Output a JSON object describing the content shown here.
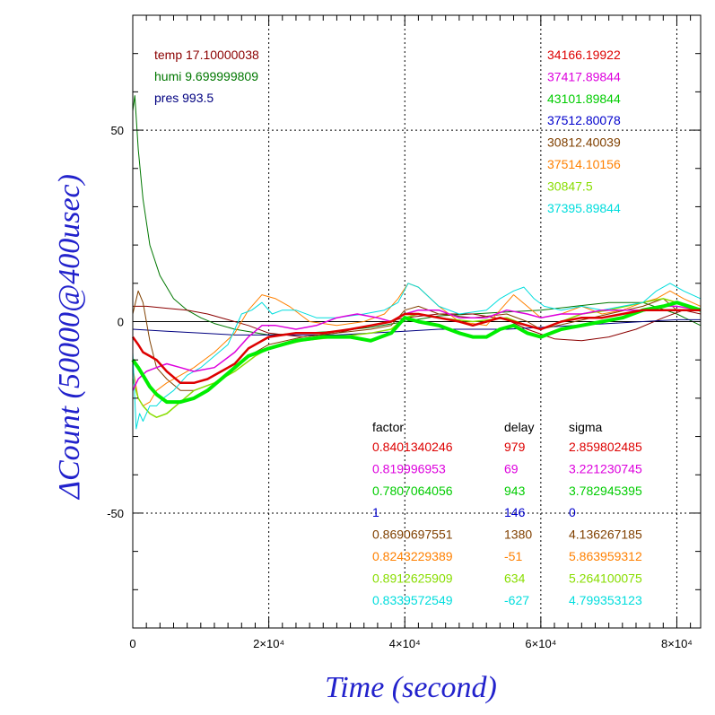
{
  "chart_data": {
    "type": "line",
    "xlabel": "Time (second)",
    "ylabel": "ΔCount (50000@400usec)",
    "xlim": [
      0,
      83500
    ],
    "ylim": [
      -80,
      80
    ],
    "grid": true,
    "x_ticks": [
      {
        "value": 0,
        "label": "0"
      },
      {
        "value": 20000,
        "label": "2×10⁴"
      },
      {
        "value": 40000,
        "label": "4×10⁴"
      },
      {
        "value": 60000,
        "label": "6×10⁴"
      },
      {
        "value": 80000,
        "label": "8×10⁴"
      }
    ],
    "y_ticks": [
      {
        "value": 50,
        "label": "50"
      },
      {
        "value": 0,
        "label": "0"
      },
      {
        "value": -50,
        "label": "-50"
      }
    ],
    "env_legend": [
      {
        "name": "temp",
        "value": "17.10000038",
        "color": "#8b0000"
      },
      {
        "name": "humi",
        "value": "9.699999809",
        "color": "#007700"
      },
      {
        "name": "pres",
        "value": "993.5",
        "color": "#000080"
      }
    ],
    "mean_values": [
      {
        "value": "34166.19922",
        "color": "#dd0000"
      },
      {
        "value": "37417.89844",
        "color": "#dd00dd"
      },
      {
        "value": "43101.89844",
        "color": "#00cc00"
      },
      {
        "value": "37512.80078",
        "color": "#0000cc"
      },
      {
        "value": "30812.40039",
        "color": "#804000"
      },
      {
        "value": "37514.10156",
        "color": "#ff8000"
      },
      {
        "value": "30847.5",
        "color": "#88dd00"
      },
      {
        "value": "37395.89844",
        "color": "#00dddd"
      }
    ],
    "stats_headers": {
      "factor": "factor",
      "delay": "delay",
      "sigma": "sigma"
    },
    "stats": [
      {
        "factor": "0.8401340246",
        "delay": "979",
        "sigma": "2.859802485",
        "color": "#dd0000"
      },
      {
        "factor": "0.819996953",
        "delay": "69",
        "sigma": "3.221230745",
        "color": "#dd00dd"
      },
      {
        "factor": "0.7807064056",
        "delay": "943",
        "sigma": "3.782945395",
        "color": "#00cc00"
      },
      {
        "factor": "1",
        "delay": "146",
        "sigma": "0",
        "color": "#0000cc"
      },
      {
        "factor": "0.8690697551",
        "delay": "1380",
        "sigma": "4.136267185",
        "color": "#804000"
      },
      {
        "factor": "0.8243229389",
        "delay": "-51",
        "sigma": "5.863959312",
        "color": "#ff8000"
      },
      {
        "factor": "0.8912625909",
        "delay": "634",
        "sigma": "5.264100075",
        "color": "#88dd00"
      },
      {
        "factor": "0.8339572549",
        "delay": "-627",
        "sigma": "4.799353123",
        "color": "#00dddd"
      }
    ],
    "series": [
      {
        "color": "#007700",
        "width": 1,
        "x": [
          0,
          300,
          800,
          1500,
          2500,
          4000,
          6000,
          8000,
          10000,
          12000,
          15000,
          20000,
          25000,
          30000,
          35000,
          40000,
          45000,
          50000,
          55000,
          60000,
          65000,
          70000,
          75000,
          80000,
          83500
        ],
        "y": [
          55,
          59,
          45,
          32,
          20,
          12,
          6,
          3,
          1,
          -0.5,
          -2,
          -3.5,
          -3,
          -2.5,
          -1.5,
          0,
          1.5,
          2,
          2.5,
          3,
          4,
          5,
          5,
          2,
          -1
        ]
      },
      {
        "color": "#8b0000",
        "width": 1,
        "x": [
          0,
          2000,
          5000,
          8000,
          11000,
          14000,
          17000,
          20000,
          25000,
          30000,
          35000,
          40000,
          45000,
          50000,
          55000,
          58000,
          62000,
          66000,
          70000,
          74000,
          78000,
          81000,
          83500
        ],
        "y": [
          4,
          4,
          3.5,
          3,
          2,
          0.5,
          -1,
          -3,
          -4,
          -3,
          -1,
          1,
          2,
          2,
          0.5,
          -2,
          -4.5,
          -5,
          -4,
          -2,
          1,
          3,
          2
        ]
      },
      {
        "color": "#000080",
        "width": 1,
        "x": [
          0,
          5000,
          10000,
          15000,
          20000,
          25000,
          30000,
          35000,
          40000,
          45000,
          50000,
          55000,
          60000,
          65000,
          70000,
          75000,
          80000,
          83500
        ],
        "y": [
          -2,
          -2.5,
          -3,
          -3.5,
          -3.5,
          -3.5,
          -3.5,
          -3,
          -2.5,
          -2,
          -2,
          -2,
          -1.5,
          -1,
          -0.5,
          0,
          0.5,
          0.5
        ]
      },
      {
        "color": "#804000",
        "width": 1,
        "x": [
          0,
          800,
          1500,
          2500,
          3500,
          5000,
          7000,
          9000,
          12000,
          15000,
          18000,
          20000,
          25000,
          30000,
          35000,
          38000,
          40000,
          42000,
          45000,
          50000,
          55000,
          58000,
          60000,
          65000,
          70000,
          75000,
          78000,
          80000,
          83500
        ],
        "y": [
          2,
          8,
          5,
          -5,
          -12,
          -15,
          -18,
          -18,
          -16,
          -12,
          -8,
          -6,
          -4,
          -3,
          -2,
          -1,
          3,
          4,
          2,
          1,
          2,
          0,
          -2,
          0,
          2,
          4,
          6,
          3,
          3
        ]
      },
      {
        "color": "#ff8000",
        "width": 1,
        "x": [
          0,
          800,
          1500,
          2500,
          3500,
          5000,
          7000,
          9000,
          12000,
          15000,
          17000,
          19000,
          21000,
          23000,
          26000,
          30000,
          34000,
          37000,
          39000,
          40500,
          42000,
          45000,
          48000,
          52000,
          54000,
          56000,
          58000,
          60000,
          63000,
          66000,
          69000,
          72000,
          75000,
          77000,
          79000,
          81000,
          83500
        ],
        "y": [
          -12,
          -20,
          -22,
          -21,
          -18,
          -16,
          -14,
          -12,
          -8,
          -3,
          3,
          7,
          6,
          4,
          0,
          -1,
          0,
          2,
          6,
          10,
          9,
          4,
          0,
          -1,
          3,
          7,
          4,
          1,
          2,
          4,
          2,
          3,
          5,
          6,
          8,
          6,
          4
        ]
      },
      {
        "color": "#88dd00",
        "width": 1.5,
        "x": [
          0,
          800,
          1500,
          2500,
          3500,
          5000,
          7000,
          9000,
          12000,
          15000,
          18000,
          20000,
          25000,
          30000,
          35000,
          38000,
          40000,
          42000,
          45000,
          50000,
          55000,
          58000,
          60000,
          63000,
          66000,
          70000,
          75000,
          78000,
          80000,
          83500
        ],
        "y": [
          -15,
          -20,
          -22,
          -24,
          -25,
          -24,
          -21,
          -18,
          -16,
          -13,
          -9,
          -7,
          -5,
          -4,
          -3,
          -2,
          1,
          2,
          1,
          0,
          1,
          -1,
          -2,
          0,
          2,
          3,
          5,
          6,
          5,
          3
        ]
      },
      {
        "color": "#00dddd",
        "width": 1,
        "x": [
          0,
          500,
          1000,
          1500,
          2500,
          3500,
          4500,
          6000,
          8000,
          10000,
          12000,
          14000,
          16000,
          17500,
          19000,
          20500,
          22000,
          24000,
          27000,
          30000,
          34000,
          37000,
          39000,
          40500,
          42000,
          45000,
          48000,
          52000,
          54000,
          56000,
          57500,
          59000,
          60500,
          63000,
          66000,
          69000,
          72000,
          75000,
          77000,
          79000,
          81000,
          83500
        ],
        "y": [
          -8,
          -28,
          -24,
          -26,
          -22,
          -22,
          -20,
          -18,
          -14,
          -12,
          -9,
          -6,
          2,
          3,
          5,
          2,
          3,
          3,
          1,
          1,
          2,
          3,
          5,
          10,
          9,
          4,
          2,
          3,
          6,
          8,
          9,
          6,
          4,
          3,
          4,
          3,
          4,
          5,
          8,
          10,
          8,
          6
        ]
      },
      {
        "color": "#dd00dd",
        "width": 1.5,
        "x": [
          0,
          800,
          2000,
          3500,
          5000,
          7000,
          9000,
          12000,
          15000,
          17000,
          19000,
          21000,
          24000,
          27000,
          30000,
          33000,
          36000,
          38000,
          40000,
          42000,
          45000,
          48000,
          52000,
          55000,
          58000,
          60000,
          63000,
          66000,
          69000,
          72000,
          75000,
          78000,
          80000,
          83500
        ],
        "y": [
          -18,
          -15,
          -13,
          -12,
          -11,
          -12,
          -13,
          -12,
          -8,
          -4,
          -1,
          -1,
          -2,
          -1,
          1,
          2,
          1,
          0,
          2,
          3,
          3,
          1,
          1,
          3,
          2,
          1,
          2,
          2,
          3,
          3,
          3,
          4,
          4,
          3
        ]
      },
      {
        "color": "#00ee00",
        "width": 4,
        "x": [
          0,
          800,
          1500,
          2500,
          3500,
          5000,
          7000,
          9000,
          11000,
          13000,
          15000,
          17000,
          20000,
          24000,
          28000,
          32000,
          35000,
          38000,
          40000,
          42000,
          45000,
          48000,
          50000,
          52000,
          54000,
          56000,
          58000,
          60000,
          63000,
          66000,
          69000,
          72000,
          75000,
          78000,
          80000,
          83500
        ],
        "y": [
          -10,
          -12,
          -14,
          -17,
          -19,
          -21,
          -21,
          -20,
          -18,
          -15,
          -12,
          -9,
          -7,
          -5,
          -4,
          -4,
          -5,
          -3,
          1,
          0,
          -1,
          -3,
          -4,
          -4,
          -2,
          -1,
          -3,
          -4,
          -2,
          -1,
          0,
          1,
          3,
          4,
          5,
          3
        ]
      },
      {
        "color": "#dd0000",
        "width": 2.5,
        "x": [
          0,
          800,
          1500,
          2500,
          3500,
          5000,
          7000,
          9000,
          11000,
          13000,
          15000,
          17000,
          20000,
          24000,
          28000,
          32000,
          35000,
          38000,
          40000,
          42000,
          45000,
          48000,
          50000,
          52000,
          54000,
          56000,
          58000,
          60000,
          63000,
          66000,
          69000,
          72000,
          75000,
          78000,
          80000,
          83500
        ],
        "y": [
          -4,
          -6,
          -8,
          -9,
          -10,
          -13,
          -16,
          -16,
          -15,
          -13,
          -11,
          -7,
          -4,
          -3,
          -3,
          -2,
          -1,
          0,
          2,
          2,
          1,
          0,
          -1,
          0,
          1,
          0,
          -1,
          -2,
          0,
          1,
          1,
          2,
          3,
          3,
          3,
          3
        ]
      }
    ]
  }
}
